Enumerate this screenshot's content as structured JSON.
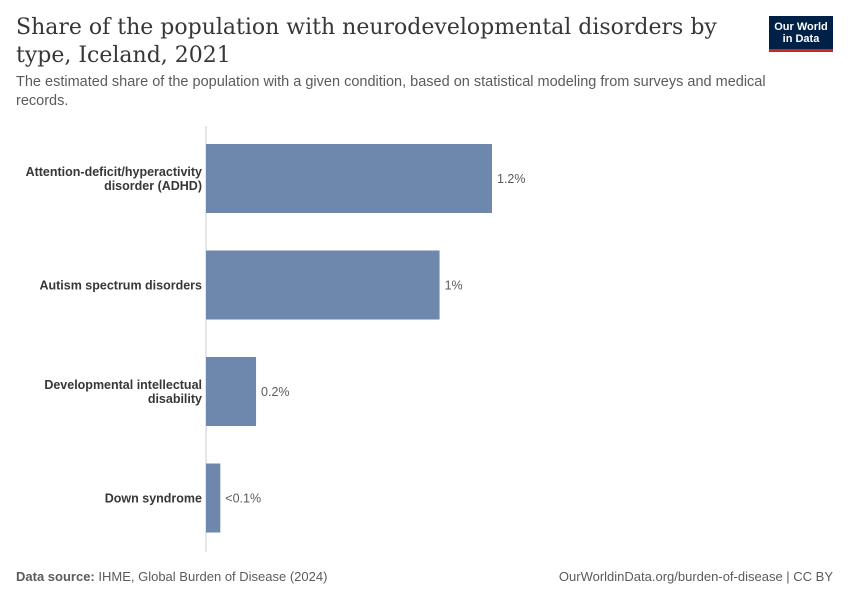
{
  "header": {
    "title": "Share of the population with neurodevelopmental disorders by type, Iceland, 2021",
    "subtitle": "The estimated share of the population with a given condition, based on statistical modeling from surveys and medical records."
  },
  "logo": {
    "line1": "Our World",
    "line2": "in Data"
  },
  "footer": {
    "source_label": "Data source:",
    "source_text": "IHME, Global Burden of Disease (2024)",
    "url_text": "OurWorldinData.org/burden-of-disease | CC BY"
  },
  "colors": {
    "bar": "#6d87ad",
    "axis": "#cccccc",
    "label": "#373737"
  },
  "chart_data": {
    "type": "bar",
    "orientation": "horizontal",
    "categories": [
      [
        "Attention-deficit/hyperactivity",
        "disorder (ADHD)"
      ],
      [
        "Autism spectrum disorders"
      ],
      [
        "Developmental intellectual",
        "disability"
      ],
      [
        "Down syndrome"
      ]
    ],
    "values": [
      1.2,
      0.98,
      0.21,
      0.06
    ],
    "value_labels": [
      "1.2%",
      "1%",
      "0.2%",
      "<0.1%"
    ],
    "xlim": [
      0,
      1.2
    ],
    "grid": false,
    "legend": "none"
  }
}
